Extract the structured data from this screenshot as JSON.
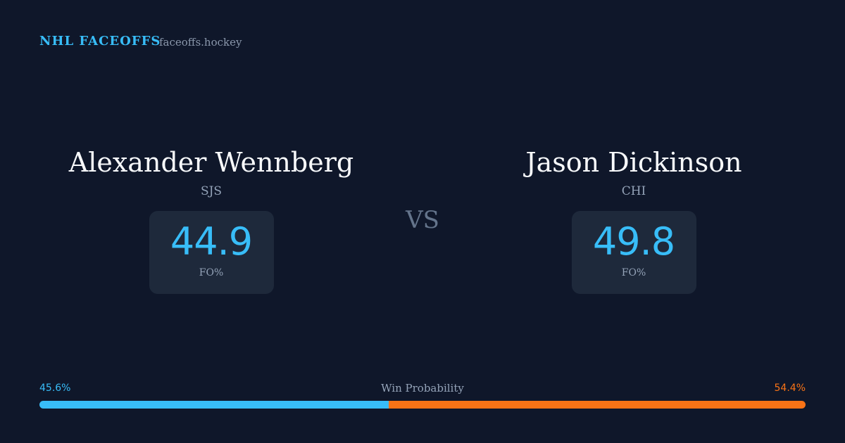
{
  "header": {
    "brand": "NHL FACEOFFS",
    "site": "faceoffs.hockey"
  },
  "players": [
    {
      "name": "Alexander Wennberg",
      "team": "SJS",
      "fo_pct": 44.9,
      "fo_label": "FO%"
    },
    {
      "name": "Jason Dickinson",
      "team": "CHI",
      "fo_pct": 49.8,
      "fo_label": "FO%"
    }
  ],
  "vs": "VS",
  "win_probability": {
    "label": "Win Probability",
    "values": [
      45.6,
      54.4
    ],
    "value_labels": [
      "45.6%",
      "54.4%"
    ],
    "colors": [
      "#38bdf8",
      "#f97316"
    ]
  }
}
